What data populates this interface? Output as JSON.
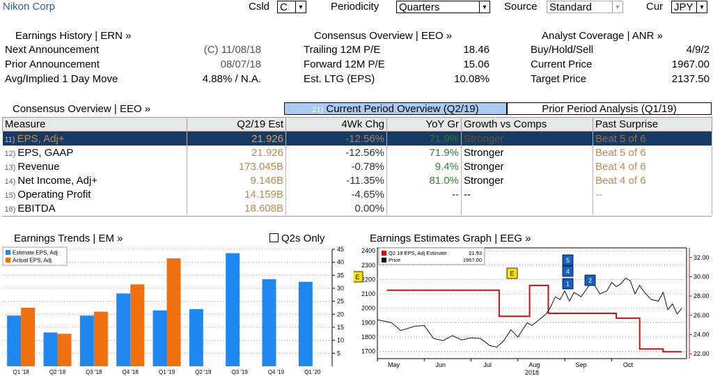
{
  "company": "Nikon Corp",
  "toolbar": {
    "csld_label": "Csld",
    "csld_value": "C",
    "periodicity_label": "Periodicity",
    "periodicity_value": "Quarters",
    "source_label": "Source",
    "source_value": "Standard",
    "cur_label": "Cur",
    "cur_value": "JPY",
    "dropdown_arrow": "▼"
  },
  "earnings_history": {
    "title": "Earnings History | ERN »",
    "rows": [
      {
        "label": "Next Announcement",
        "value": "(C)  11/08/18"
      },
      {
        "label": "Prior Announcement",
        "value": "08/07/18"
      },
      {
        "label": "Avg/Implied 1 Day Move",
        "value": "4.88% / N.A."
      }
    ]
  },
  "consensus_top": {
    "title": "Consensus Overview | EEO »",
    "rows": [
      {
        "label": "Trailing 12M P/E",
        "value": "18.46"
      },
      {
        "label": "Forward 12M P/E",
        "value": "15.06"
      },
      {
        "label": "Est. LTG (EPS)",
        "value": "10.08%"
      }
    ]
  },
  "analyst": {
    "title": "Analyst Coverage | ANR »",
    "rows": [
      {
        "label": "Buy/Hold/Sell",
        "value": "4/9/2"
      },
      {
        "label": "Current Price",
        "value": "1967.00"
      },
      {
        "label": "Target Price",
        "value": "2137.50"
      }
    ]
  },
  "consensus_table": {
    "title": "Consensus Overview | EEO »",
    "tab_current_num": "21)",
    "tab_current": "Current Period Overview (Q2/19)",
    "tab_prior": "Prior Period Analysis (Q1/19)",
    "headers": [
      "Measure",
      "Q2/19 Est",
      "4Wk Chg",
      "YoY Gr",
      "Growth vs Comps",
      "Past Surprise"
    ],
    "rows": [
      {
        "n": "11)",
        "measure": "EPS, Adj+",
        "est": "21.926",
        "chg": "-12.56%",
        "yoy": "71.9%",
        "growth": "Stronger",
        "surprise": "Beat 5 of 6"
      },
      {
        "n": "12)",
        "measure": "EPS, GAAP",
        "est": "21.926",
        "chg": "-12.56%",
        "yoy": "71.9%",
        "growth": "Stronger",
        "surprise": "Beat 5 of 6"
      },
      {
        "n": "13)",
        "measure": "Revenue",
        "est": "173.045B",
        "chg": "-0.78%",
        "yoy": "9.4%",
        "growth": "Stronger",
        "surprise": "Beat 4 of 6"
      },
      {
        "n": "14)",
        "measure": "Net Income, Adj+",
        "est": "9.146B",
        "chg": "-11.35%",
        "yoy": "81.0%",
        "growth": "Stronger",
        "surprise": "Beat 4 of 6"
      },
      {
        "n": "15)",
        "measure": "Operating Profit",
        "est": "14.159B",
        "chg": "-4.65%",
        "yoy": "--",
        "growth": "--",
        "surprise": "--"
      },
      {
        "n": "16)",
        "measure": "EBITDA",
        "est": "18.608B",
        "chg": "0.00%",
        "yoy": "",
        "growth": "",
        "surprise": ""
      }
    ]
  },
  "trends": {
    "title": "Earnings Trends | EM »",
    "q2s_only": "Q2s Only"
  },
  "estimates_graph": {
    "title": "Earnings Estimates Graph | EEG »"
  },
  "chart_data": [
    {
      "type": "bar",
      "categories": [
        "Q1 '18",
        "Q2 '18",
        "Q3 '18",
        "Q4 '18",
        "Q1 '19",
        "Q2 '19",
        "Q3 '19",
        "Q4 '19",
        "Q1 '20"
      ],
      "series": [
        {
          "name": "Estimate EPS, Adj",
          "color": "#1e88f0",
          "values": [
            19.5,
            13,
            19.5,
            28,
            21.5,
            22,
            43.5,
            33.5,
            32.5
          ]
        },
        {
          "name": "Actual EPS, Adj",
          "color": "#f07010",
          "values": [
            22.5,
            12.5,
            21,
            31.5,
            41.5,
            null,
            null,
            null,
            null
          ]
        }
      ],
      "ylim": [
        0,
        45
      ],
      "yticks": [
        "5",
        "10",
        "15",
        "20",
        "25",
        "30",
        "35",
        "40",
        "45"
      ],
      "grid": "horizontal dotted",
      "legend": "top-left"
    },
    {
      "type": "line",
      "xlabel": "2018",
      "x_tick_labels": [
        "May",
        "Jun",
        "Jul",
        "Aug",
        "Sep",
        "Oct"
      ],
      "left_axis": {
        "ylim": [
          1650,
          2420
        ],
        "ticks": [
          "1700",
          "1800",
          "1900",
          "2000",
          "2100",
          "2200",
          "2300",
          "2400"
        ]
      },
      "right_axis": {
        "ylim": [
          21.5,
          33.0
        ],
        "ticks": [
          "22.00",
          "24.00",
          "26.00",
          "28.00",
          "30.00",
          "32.00"
        ]
      },
      "legend": "top-left",
      "series": [
        {
          "name": "Q2 19 EPS, Adj Estimate",
          "legend_value": "21.93",
          "color": "#cc1111",
          "axis": "right",
          "points": [
            [
              0.2,
              28.6
            ],
            [
              2.6,
              28.6
            ],
            [
              2.6,
              25.9
            ],
            [
              3.25,
              25.9
            ],
            [
              3.25,
              29.1
            ],
            [
              3.65,
              29.1
            ],
            [
              3.65,
              26.2
            ],
            [
              5.1,
              26.2
            ],
            [
              5.1,
              25.7
            ],
            [
              5.6,
              25.7
            ],
            [
              5.6,
              22.5
            ],
            [
              6.1,
              22.5
            ],
            [
              6.1,
              22.2
            ],
            [
              6.5,
              22.2
            ]
          ]
        },
        {
          "name": "Price",
          "legend_value": "1967.00",
          "color": "#111111",
          "axis": "left",
          "points": [
            [
              0,
              1920
            ],
            [
              0.3,
              1900
            ],
            [
              0.5,
              1845
            ],
            [
              0.8,
              1875
            ],
            [
              1.0,
              1880
            ],
            [
              1.2,
              1790
            ],
            [
              1.4,
              1775
            ],
            [
              1.6,
              1810
            ],
            [
              1.8,
              1780
            ],
            [
              2.0,
              1795
            ],
            [
              2.2,
              1790
            ],
            [
              2.4,
              1740
            ],
            [
              2.55,
              1730
            ],
            [
              2.7,
              1775
            ],
            [
              2.85,
              1850
            ],
            [
              3.0,
              1800
            ],
            [
              3.1,
              1850
            ],
            [
              3.2,
              1900
            ],
            [
              3.3,
              1880
            ],
            [
              3.45,
              1920
            ],
            [
              3.6,
              1960
            ],
            [
              3.7,
              2010
            ],
            [
              3.8,
              2080
            ],
            [
              3.9,
              2060
            ],
            [
              4.0,
              2120
            ],
            [
              4.1,
              2050
            ],
            [
              4.2,
              2110
            ],
            [
              4.35,
              2080
            ],
            [
              4.5,
              2150
            ],
            [
              4.6,
              2180
            ],
            [
              4.75,
              2100
            ],
            [
              4.9,
              2120
            ],
            [
              5.0,
              2180
            ],
            [
              5.1,
              2150
            ],
            [
              5.2,
              2170
            ],
            [
              5.3,
              2210
            ],
            [
              5.4,
              2190
            ],
            [
              5.5,
              2100
            ],
            [
              5.6,
              2160
            ],
            [
              5.7,
              2110
            ],
            [
              5.85,
              2060
            ],
            [
              6.0,
              2050
            ],
            [
              6.1,
              2110
            ],
            [
              6.2,
              1990
            ],
            [
              6.3,
              2030
            ],
            [
              6.4,
              1960
            ],
            [
              6.5,
              2000
            ]
          ]
        }
      ],
      "event_markers": [
        {
          "label": "E",
          "color": "#f5e400"
        },
        {
          "label": "E",
          "color": "#f5e400"
        },
        {
          "label": "5",
          "color": "#1560c8"
        },
        {
          "label": "4",
          "color": "#1560c8"
        },
        {
          "label": "1",
          "color": "#1560c8"
        },
        {
          "label": "2",
          "color": "#1560c8"
        }
      ]
    }
  ]
}
